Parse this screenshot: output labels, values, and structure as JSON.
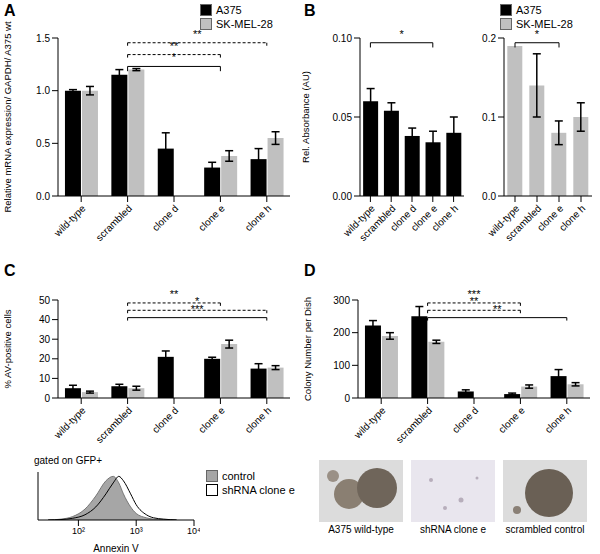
{
  "chart_data": [
    {
      "title": "A",
      "type": "bar",
      "categories": [
        "wild-type",
        "scrambled",
        "clone d",
        "clone e",
        "clone h"
      ],
      "series": [
        {
          "name": "A375",
          "color": "#000000",
          "values": [
            1.0,
            1.15,
            0.45,
            0.27,
            0.35
          ],
          "errors": [
            0.01,
            0.05,
            0.15,
            0.05,
            0.1
          ]
        },
        {
          "name": "SK-MEL-28",
          "color": "#c0c0c0",
          "values": [
            1.0,
            1.2,
            null,
            0.38,
            0.55
          ],
          "errors": [
            0.04,
            0.01,
            null,
            0.05,
            0.06
          ]
        }
      ],
      "y_label": "Relative mRNA expression/ GAPDH/ A375 wt",
      "ylim": [
        0,
        1.5
      ],
      "yticks": [
        {
          "value": 0,
          "label": "0.0"
        },
        {
          "value": 0.5,
          "label": "0.5"
        },
        {
          "value": 1,
          "label": "1.0"
        },
        {
          "value": 1.5,
          "label": "1.5"
        }
      ],
      "grid": false,
      "legend": "top right",
      "annotations": [
        {
          "text": "**",
          "from": "scrambled",
          "to": "clone h",
          "line_style": "dashed"
        },
        {
          "text": "**",
          "from": "scrambled",
          "to": "clone e",
          "line_style": "dashed"
        },
        {
          "text": "*",
          "from": "scrambled",
          "to": "clone e",
          "line_style": "solid"
        }
      ]
    },
    {
      "title": "B",
      "type": "bar",
      "categories": [
        "wild-type",
        "scrambled",
        "clone d",
        "clone e",
        "clone h"
      ],
      "series": [
        {
          "name": "A375",
          "color": "#000000",
          "values": [
            0.06,
            0.054,
            0.038,
            0.034,
            0.04
          ],
          "errors": [
            0.008,
            0.005,
            0.005,
            0.007,
            0.01
          ]
        }
      ],
      "y_label": "Rel. Absorbance (AU)",
      "ylim": [
        0,
        0.1
      ],
      "yticks": [
        {
          "value": 0,
          "label": "0.00"
        },
        {
          "value": 0.05,
          "label": "0.05"
        },
        {
          "value": 0.1,
          "label": "0.10"
        }
      ],
      "grid": false,
      "legend": "top right",
      "annotations": [
        {
          "text": "*",
          "from": "wild-type",
          "to": "clone e",
          "line_style": "solid"
        }
      ]
    },
    {
      "type": "bar",
      "categories": [
        "wild-type",
        "scrambled",
        "clone e",
        "clone h"
      ],
      "series": [
        {
          "name": "SK-MEL-28",
          "color": "#c0c0c0",
          "values": [
            0.19,
            0.14,
            0.08,
            0.1
          ],
          "errors": [
            null,
            0.04,
            0.015,
            0.018
          ]
        }
      ],
      "ylim": [
        0,
        0.2
      ],
      "yticks": [
        {
          "value": 0,
          "label": "0.0"
        },
        {
          "value": 0.1,
          "label": "0.1"
        },
        {
          "value": 0.2,
          "label": "0.2"
        }
      ],
      "grid": false,
      "legend": "top right",
      "annotations": [
        {
          "text": "*",
          "from": "wild-type",
          "to": "clone e",
          "line_style": "solid"
        }
      ]
    },
    {
      "title": "C",
      "type": "bar",
      "categories": [
        "wild-type",
        "scrambled",
        "clone d",
        "clone e",
        "clone h"
      ],
      "series": [
        {
          "name": "A375",
          "color": "#000000",
          "values": [
            5,
            6,
            21,
            20,
            15
          ],
          "errors": [
            1.5,
            1,
            3,
            0.8,
            2.5
          ]
        },
        {
          "name": "SK-MEL-28",
          "color": "#c0c0c0",
          "values": [
            3,
            5,
            null,
            27.5,
            15.5
          ],
          "errors": [
            0.5,
            1,
            null,
            2,
            1
          ]
        }
      ],
      "y_label": "% AV-positive cells",
      "ylim": [
        0,
        50
      ],
      "yticks": [
        0,
        10,
        20,
        30,
        40,
        50
      ],
      "grid": false,
      "annotations": [
        {
          "text": "**",
          "from": "scrambled",
          "to": "clone e",
          "line_style": "dashed"
        },
        {
          "text": "*",
          "from": "scrambled",
          "to": "clone h",
          "line_style": "dashed"
        },
        {
          "text": "***",
          "from": "scrambled",
          "to": "clone h",
          "line_style": "solid"
        }
      ]
    },
    {
      "title": "gated on GFP+",
      "type": "area",
      "x_label": "Annexin V",
      "x": [
        30,
        50,
        80,
        130,
        200,
        300,
        400,
        500,
        600,
        800,
        1000,
        1500,
        2000,
        3000,
        5000
      ],
      "series": [
        {
          "name": "control",
          "type": "area",
          "color": "#a6a6a6",
          "values": [
            0,
            2,
            8,
            25,
            55,
            90,
            100,
            85,
            60,
            30,
            15,
            5,
            2,
            1,
            0
          ]
        },
        {
          "name": "shRNA clone e",
          "type": "line",
          "color": "#000000",
          "values": [
            0,
            1,
            4,
            12,
            30,
            60,
            85,
            100,
            90,
            60,
            35,
            12,
            5,
            2,
            0
          ]
        }
      ],
      "xlim": [
        20,
        10000
      ],
      "xticks": [
        {
          "value": 100,
          "label": "10²"
        },
        {
          "value": 1000,
          "label": "10³"
        },
        {
          "value": 10000,
          "label": "10⁴"
        }
      ],
      "ylim": [
        0,
        110
      ],
      "log": "x",
      "tick_labels": "x",
      "legend": "top right"
    },
    {
      "title": "D",
      "type": "bar",
      "categories": [
        "wild-type",
        "scrambled",
        "clone d",
        "clone e",
        "clone h"
      ],
      "series": [
        {
          "name": "A375",
          "color": "#000000",
          "values": [
            222,
            250,
            20,
            12,
            67
          ],
          "errors": [
            15,
            30,
            5,
            3,
            20
          ]
        },
        {
          "name": "SK-MEL-28",
          "color": "#c0c0c0",
          "values": [
            190,
            172,
            null,
            35,
            42
          ],
          "errors": [
            10,
            5,
            null,
            5,
            5
          ]
        }
      ],
      "y_label": "Colony Number per Dish",
      "ylim": [
        0,
        300
      ],
      "yticks": [
        0,
        100,
        200,
        300
      ],
      "grid": false,
      "annotations": [
        {
          "text": "***",
          "from": "scrambled",
          "to": "clone e",
          "line_style": "dashed"
        },
        {
          "text": "**",
          "from": "scrambled",
          "to": "clone e",
          "line_style": "dashed"
        },
        {
          "text": "**",
          "from": "scrambled",
          "to": "clone h",
          "line_style": "solid"
        }
      ],
      "images": [
        {
          "caption": "A375 wild-type"
        },
        {
          "caption": "shRNA clone e"
        },
        {
          "caption": "scrambled control"
        }
      ]
    }
  ]
}
